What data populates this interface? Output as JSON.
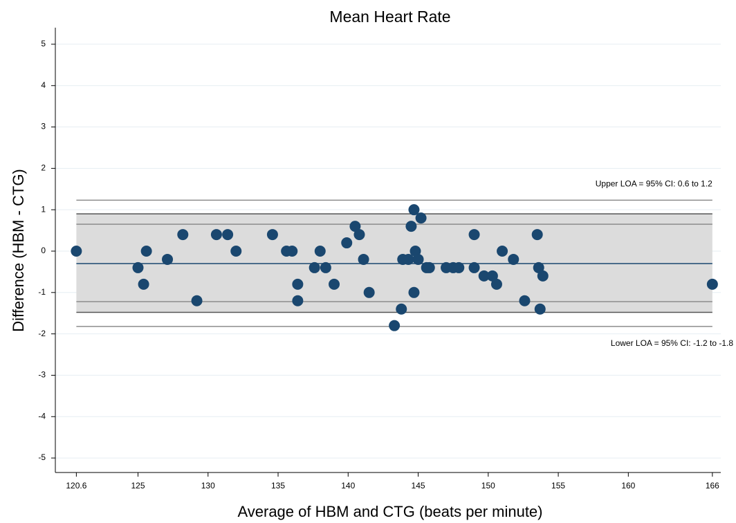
{
  "chart_data": {
    "type": "scatter",
    "title": "Mean Heart Rate",
    "xlabel": "Average of HBM and CTG (beats per minute)",
    "ylabel": "Difference (HBM - CTG)",
    "x": [
      120.6,
      125.0,
      125.4,
      125.6,
      127.1,
      128.2,
      129.2,
      130.6,
      131.4,
      132.0,
      134.6,
      135.6,
      136.0,
      136.4,
      136.4,
      137.6,
      138.0,
      138.4,
      139.0,
      139.9,
      140.5,
      140.8,
      141.1,
      141.5,
      143.3,
      143.8,
      143.9,
      144.3,
      144.5,
      144.7,
      144.7,
      144.8,
      145.0,
      145.2,
      145.6,
      145.8,
      147.0,
      147.5,
      147.9,
      149.0,
      149.0,
      149.7,
      150.3,
      150.6,
      151.0,
      151.8,
      152.6,
      153.5,
      153.6,
      153.7,
      153.9,
      166.0
    ],
    "values": [
      0,
      -0.4,
      -0.8,
      0,
      -0.2,
      0.4,
      -1.2,
      0.4,
      0.4,
      0,
      0.4,
      0,
      0,
      -0.8,
      -1.2,
      -0.4,
      0,
      -0.4,
      -0.8,
      0.2,
      0.6,
      0.4,
      -0.2,
      -1.0,
      -1.8,
      -1.4,
      -0.2,
      -0.2,
      0.6,
      1.0,
      -1.0,
      0,
      -0.2,
      0.8,
      -0.4,
      -0.4,
      -0.4,
      -0.4,
      -0.4,
      0.4,
      -0.4,
      -0.6,
      -0.6,
      -0.8,
      0,
      -0.2,
      -1.2,
      0.4,
      -0.4,
      -1.4,
      -0.6,
      -0.8
    ],
    "color": "#1a476f",
    "mean": -0.3,
    "mean_color": "#1a476f",
    "limits_of_agreement": [
      1.23,
      -1.82
    ],
    "ci_lines": [
      0.9,
      0.65,
      -1.22,
      -1.48
    ],
    "line_color": "#8c8c8c",
    "band_color": "#dcdcdc",
    "annotations": [
      "Upper LOA = 95% CI: 0.6 to 1.2",
      "Lower LOA = 95% CI: -1.2 to -1.8"
    ],
    "xlim": [
      119.1,
      166.6
    ],
    "ylim": [
      -5.35,
      5.4
    ],
    "xticks": [
      120.6,
      125,
      130,
      135,
      140,
      145,
      150,
      155,
      160,
      166
    ],
    "yticks": [
      -5,
      -4,
      -3,
      -2,
      -1,
      0,
      1,
      2,
      3,
      4,
      5
    ],
    "grid": true
  }
}
